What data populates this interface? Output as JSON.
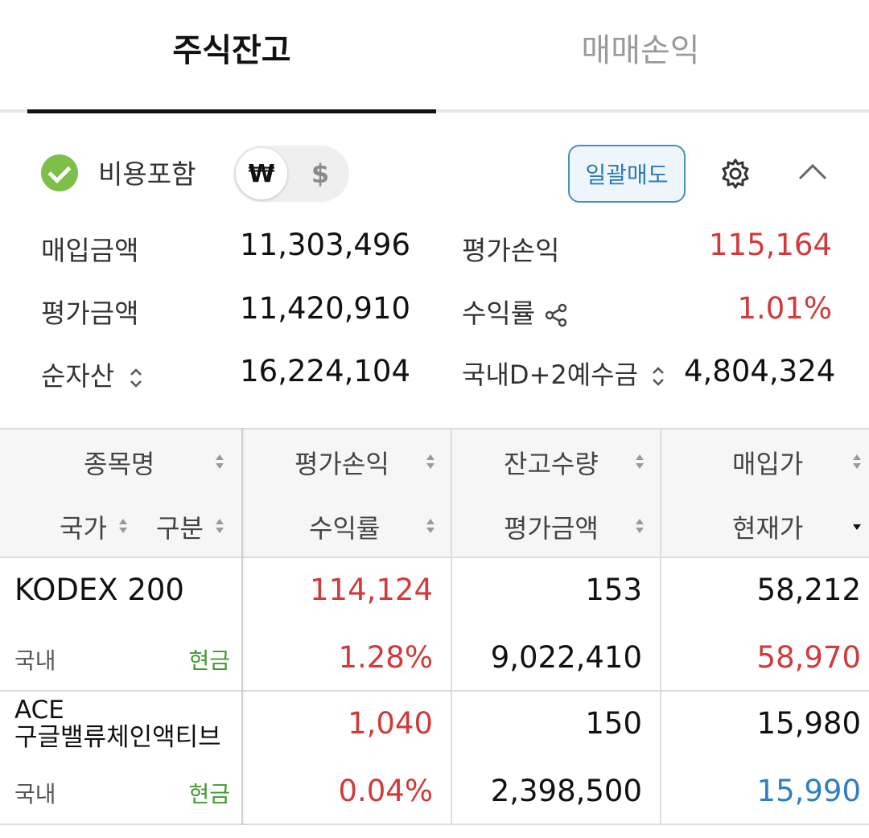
{
  "tabs": [
    {
      "label": "주식잔고",
      "active": true
    },
    {
      "label": "매매손익",
      "active": false
    }
  ],
  "summary": {
    "fee_label": "비용포함",
    "currency": {
      "won": "₩",
      "usd": "$",
      "selected": "won"
    },
    "bulk_sell_label": "일괄매도",
    "purchase_amount": {
      "label": "매입금액",
      "value": "11,303,496"
    },
    "eval_profit": {
      "label": "평가손익",
      "value": "115,164"
    },
    "eval_amount": {
      "label": "평가금액",
      "value": "11,420,910"
    },
    "return_rate": {
      "label": "수익률",
      "value": "1.01%"
    },
    "net_assets": {
      "label": "순자산",
      "value": "16,224,104"
    },
    "deposit": {
      "label": "국내D+2예수금",
      "value": "4,804,324"
    }
  },
  "table": {
    "headers": {
      "name": "종목명",
      "country": "국가",
      "type": "구분",
      "eval_profit": "평가손익",
      "return_rate": "수익률",
      "qty": "잔고수량",
      "eval_amount": "평가금액",
      "buy_price": "매입가",
      "cur_price": "현재가"
    },
    "rows": [
      {
        "name": "KODEX 200",
        "country": "국내",
        "type": "현금",
        "eval_profit": "114,124",
        "return_rate": "1.28%",
        "qty": "153",
        "eval_amount": "9,022,410",
        "buy_price": "58,212",
        "cur_price": "58,970"
      },
      {
        "name_line1": "ACE",
        "name_line2": "구글밸류체인액티브",
        "country": "국내",
        "type": "현금",
        "eval_profit": "1,040",
        "return_rate": "0.04%",
        "qty": "150",
        "eval_amount": "2,398,500",
        "buy_price": "15,980",
        "cur_price": "15,990"
      }
    ]
  },
  "colors": {
    "up": "#d03a3a",
    "down": "#2f7fc2",
    "cash": "#3f9a2b",
    "accent": "#2b79b4"
  },
  "icons": [
    "check-circle-icon",
    "gear-icon",
    "chevron-up-icon",
    "share-icon",
    "sort-icon"
  ]
}
